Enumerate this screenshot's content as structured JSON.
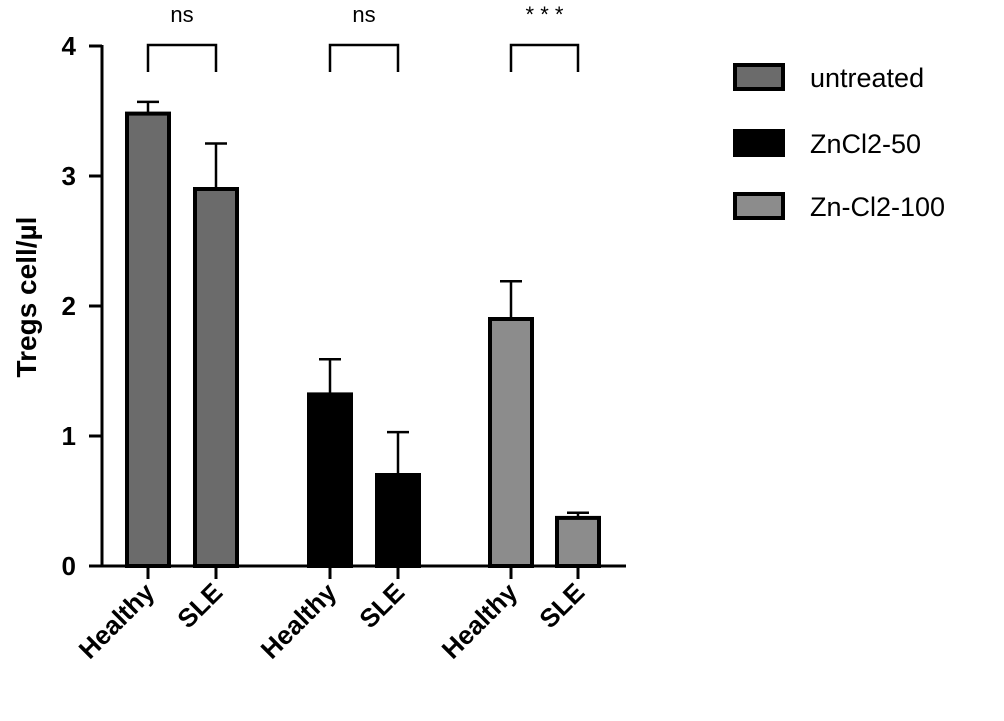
{
  "chart_data": {
    "type": "bar",
    "ylabel": "Tregs  cell/µl",
    "ylim": [
      0,
      4
    ],
    "yticks": [
      0,
      1,
      2,
      3,
      4
    ],
    "grid": false,
    "legend_position": "right",
    "series": [
      {
        "name": "untreated",
        "color": "#6b6b6b",
        "categories": [
          "Healthy",
          "SLE"
        ],
        "values": [
          3.48,
          2.9
        ],
        "errors": [
          0.09,
          0.35
        ]
      },
      {
        "name": "ZnCl2-50",
        "color": "#000000",
        "categories": [
          "Healthy",
          "SLE"
        ],
        "values": [
          1.32,
          0.7
        ],
        "errors": [
          0.27,
          0.33
        ]
      },
      {
        "name": "Zn-Cl2-100",
        "color": "#8c8c8c",
        "categories": [
          "Healthy",
          "SLE"
        ],
        "values": [
          1.9,
          0.37
        ],
        "errors": [
          0.29,
          0.04
        ]
      }
    ],
    "annotations": [
      "ns",
      "ns",
      "* * *"
    ]
  }
}
